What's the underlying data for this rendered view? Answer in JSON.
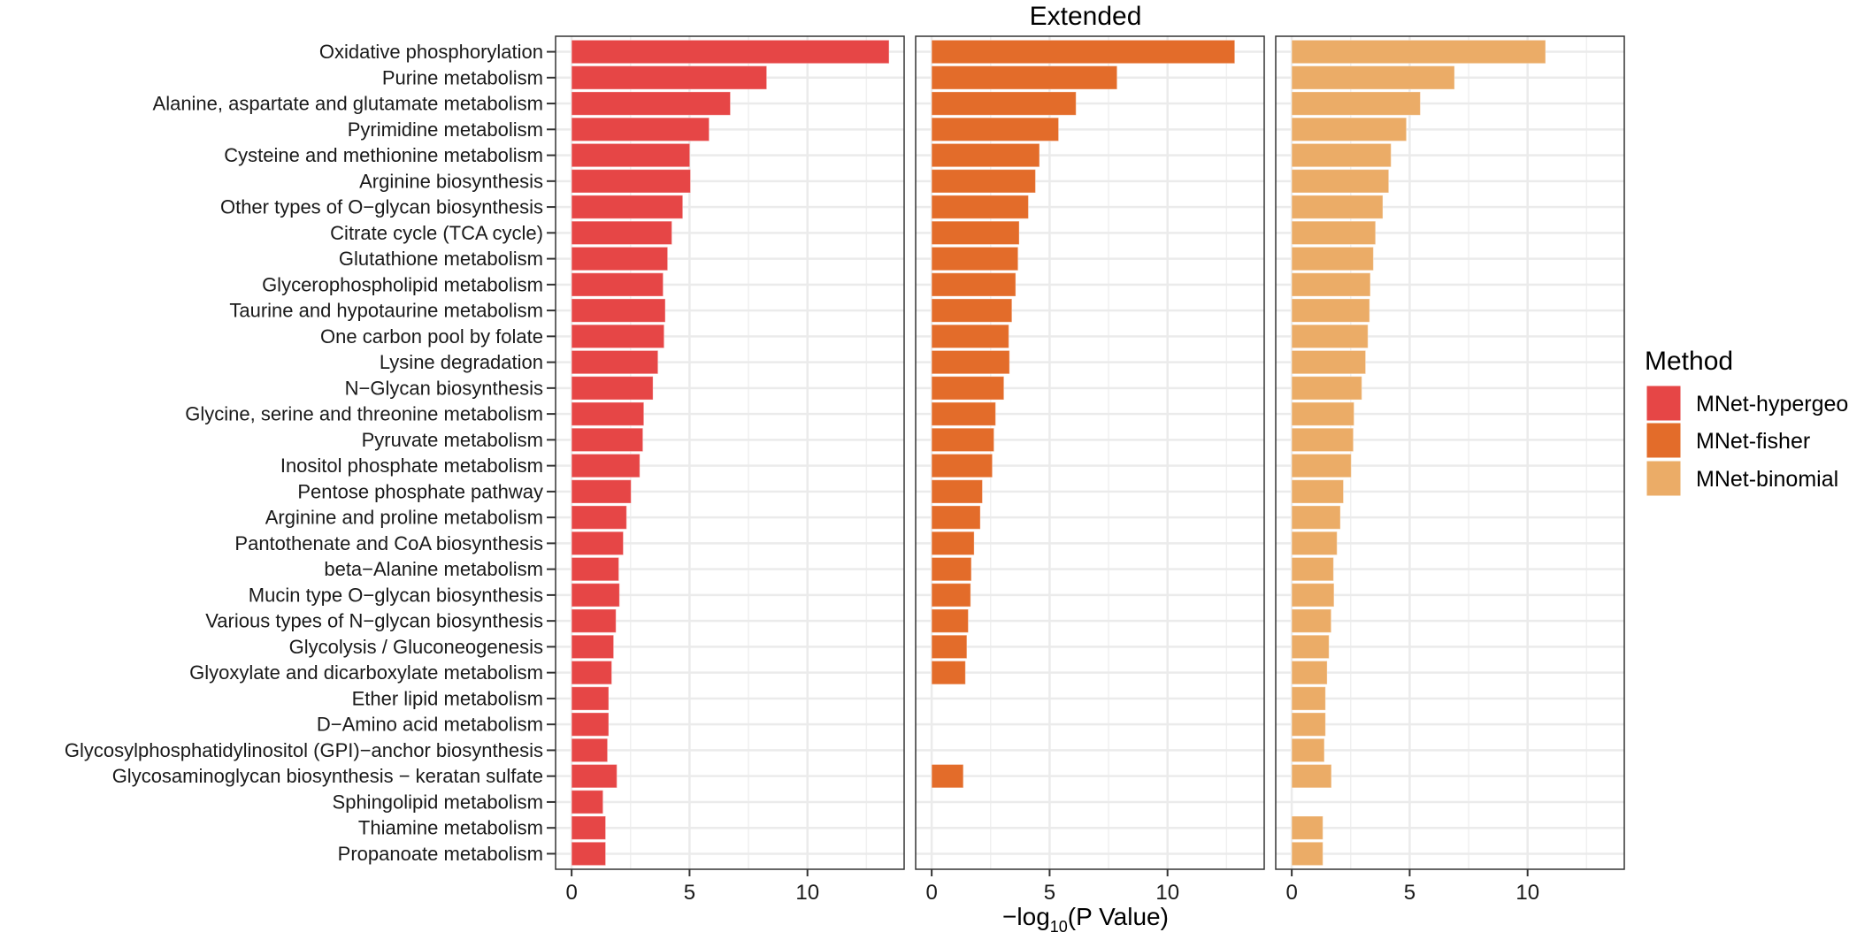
{
  "chart_data": {
    "type": "bar",
    "orientation": "horizontal",
    "title": "Extended",
    "xlabel_prefix": "−log",
    "xlabel_sub": "10",
    "xlabel_suffix": "(P Value)",
    "ylabel": "",
    "xlim": [
      -0.68,
      14.1
    ],
    "xticks": [
      0,
      5,
      10
    ],
    "grid": true,
    "facet_by": "Method",
    "legend": {
      "title": "Method",
      "position": "right"
    },
    "categories": [
      "Oxidative phosphorylation",
      "Purine metabolism",
      "Alanine, aspartate and glutamate metabolism",
      "Pyrimidine metabolism",
      "Cysteine and methionine metabolism",
      "Arginine biosynthesis",
      "Other types of O−glycan biosynthesis",
      "Citrate cycle (TCA cycle)",
      "Glutathione metabolism",
      "Glycerophospholipid metabolism",
      "Taurine and hypotaurine metabolism",
      "One carbon pool by folate",
      "Lysine degradation",
      "N−Glycan biosynthesis",
      "Glycine, serine and threonine metabolism",
      "Pyruvate metabolism",
      "Inositol phosphate metabolism",
      "Pentose phosphate pathway",
      "Arginine and proline metabolism",
      "Pantothenate and CoA biosynthesis",
      "beta−Alanine metabolism",
      "Mucin type O−glycan biosynthesis",
      "Various types of N−glycan biosynthesis",
      "Glycolysis / Gluconeogenesis",
      "Glyoxylate and dicarboxylate metabolism",
      "Ether lipid metabolism",
      "D−Amino acid metabolism",
      "Glycosylphosphatidylinositol (GPI)−anchor biosynthesis",
      "Glycosaminoglycan biosynthesis − keratan sulfate",
      "Sphingolipid metabolism",
      "Thiamine metabolism",
      "Propanoate metabolism"
    ],
    "series": [
      {
        "name": "MNet-hypergeo",
        "color": "#E64646",
        "values": [
          13.46,
          8.27,
          6.73,
          5.83,
          5.01,
          5.04,
          4.71,
          4.25,
          4.07,
          3.88,
          3.97,
          3.92,
          3.66,
          3.45,
          3.06,
          3.02,
          2.89,
          2.52,
          2.33,
          2.19,
          2.0,
          2.03,
          1.88,
          1.78,
          1.7,
          1.57,
          1.57,
          1.52,
          1.92,
          1.33,
          1.44,
          1.44
        ]
      },
      {
        "name": "MNet-fisher",
        "color": "#E36C2A",
        "values": [
          12.85,
          7.86,
          6.12,
          5.38,
          4.57,
          4.4,
          4.1,
          3.71,
          3.66,
          3.56,
          3.4,
          3.27,
          3.3,
          3.06,
          2.71,
          2.64,
          2.57,
          2.15,
          2.06,
          1.8,
          1.68,
          1.65,
          1.55,
          1.49,
          1.43,
          null,
          null,
          null,
          1.34,
          null,
          null,
          null
        ]
      },
      {
        "name": "MNet-binomial",
        "color": "#EBAC67",
        "values": [
          10.76,
          6.9,
          5.45,
          4.86,
          4.21,
          4.11,
          3.86,
          3.55,
          3.46,
          3.33,
          3.3,
          3.23,
          3.13,
          2.97,
          2.64,
          2.61,
          2.52,
          2.19,
          2.06,
          1.92,
          1.77,
          1.79,
          1.67,
          1.58,
          1.5,
          1.43,
          1.43,
          1.38,
          1.68,
          null,
          1.32,
          1.32
        ]
      }
    ]
  }
}
